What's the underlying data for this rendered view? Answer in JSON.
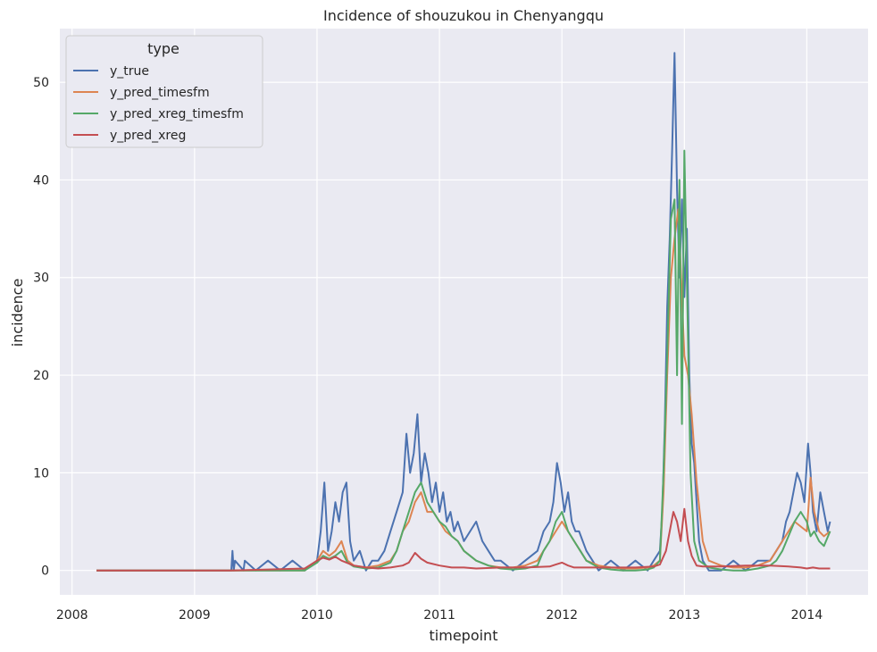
{
  "chart_data": {
    "type": "line",
    "title": "Incidence of shouzukou in Chenyangqu",
    "xlabel": "timepoint",
    "ylabel": "incidence",
    "x_ticks": [
      "2008",
      "2009",
      "2010",
      "2011",
      "2012",
      "2013",
      "2014"
    ],
    "y_ticks": [
      0,
      10,
      20,
      30,
      40,
      50
    ],
    "xlim": [
      2007.9,
      2014.5
    ],
    "ylim": [
      -2.5,
      55.5
    ],
    "grid": true,
    "background_color": "#eaeaf2",
    "legend": {
      "title": "type",
      "placement": "top-left",
      "entries": [
        "y_true",
        "y_pred_timesfm",
        "y_pred_xreg_timesfm",
        "y_pred_xreg"
      ]
    },
    "series": [
      {
        "name": "y_true",
        "color": "#4c72b0",
        "x": [
          2008.2,
          2009.3,
          2009.31,
          2009.32,
          2009.33,
          2009.4,
          2009.41,
          2009.5,
          2009.6,
          2009.7,
          2009.8,
          2009.9,
          2010.0,
          2010.03,
          2010.06,
          2010.09,
          2010.12,
          2010.15,
          2010.18,
          2010.21,
          2010.24,
          2010.27,
          2010.3,
          2010.35,
          2010.4,
          2010.45,
          2010.5,
          2010.55,
          2010.6,
          2010.65,
          2010.7,
          2010.73,
          2010.76,
          2010.79,
          2010.82,
          2010.85,
          2010.88,
          2010.91,
          2010.94,
          2010.97,
          2011.0,
          2011.03,
          2011.06,
          2011.09,
          2011.12,
          2011.15,
          2011.2,
          2011.25,
          2011.3,
          2011.35,
          2011.4,
          2011.45,
          2011.5,
          2011.6,
          2011.7,
          2011.8,
          2011.85,
          2011.9,
          2011.93,
          2011.96,
          2011.99,
          2012.02,
          2012.05,
          2012.08,
          2012.11,
          2012.14,
          2012.17,
          2012.2,
          2012.25,
          2012.3,
          2012.4,
          2012.5,
          2012.6,
          2012.7,
          2012.75,
          2012.8,
          2012.82,
          2012.84,
          2012.86,
          2012.88,
          2012.9,
          2012.92,
          2012.94,
          2012.96,
          2012.98,
          2013.0,
          2013.02,
          2013.04,
          2013.06,
          2013.08,
          2013.1,
          2013.12,
          2013.15,
          2013.2,
          2013.3,
          2013.4,
          2013.5,
          2013.6,
          2013.7,
          2013.75,
          2013.8,
          2013.83,
          2013.86,
          2013.89,
          2013.92,
          2013.95,
          2013.98,
          2014.01,
          2014.03,
          2014.05,
          2014.08,
          2014.11,
          2014.14,
          2014.17,
          2014.19
        ],
        "values": [
          0,
          0,
          2,
          0,
          1,
          0,
          1,
          0,
          1,
          0,
          1,
          0,
          1,
          4,
          9,
          2,
          4,
          7,
          5,
          8,
          9,
          3,
          1,
          2,
          0,
          1,
          1,
          2,
          4,
          6,
          8,
          14,
          10,
          12,
          16,
          9,
          12,
          10,
          7,
          9,
          6,
          8,
          5,
          6,
          4,
          5,
          3,
          4,
          5,
          3,
          2,
          1,
          1,
          0,
          1,
          2,
          4,
          5,
          7,
          11,
          9,
          6,
          8,
          5,
          4,
          4,
          3,
          2,
          1,
          0,
          1,
          0,
          1,
          0,
          1,
          2,
          6,
          15,
          27,
          34,
          43,
          53,
          39,
          30,
          38,
          28,
          35,
          20,
          13,
          11,
          7,
          3,
          1,
          0,
          0,
          1,
          0,
          1,
          1,
          2,
          3,
          5,
          6,
          8,
          10,
          9,
          7,
          13,
          10,
          6,
          4,
          8,
          6,
          4,
          5
        ]
      },
      {
        "name": "y_pred_timesfm",
        "color": "#dd8452",
        "x": [
          2008.2,
          2009.3,
          2009.9,
          2010.0,
          2010.05,
          2010.1,
          2010.15,
          2010.2,
          2010.25,
          2010.3,
          2010.4,
          2010.5,
          2010.6,
          2010.65,
          2010.7,
          2010.75,
          2010.8,
          2010.85,
          2010.9,
          2010.95,
          2011.0,
          2011.05,
          2011.1,
          2011.15,
          2011.2,
          2011.3,
          2011.4,
          2011.5,
          2011.6,
          2011.7,
          2011.8,
          2011.85,
          2011.9,
          2011.95,
          2012.0,
          2012.05,
          2012.1,
          2012.15,
          2012.2,
          2012.3,
          2012.4,
          2012.5,
          2012.6,
          2012.7,
          2012.75,
          2012.8,
          2012.83,
          2012.86,
          2012.89,
          2012.92,
          2012.95,
          2012.98,
          2013.0,
          2013.03,
          2013.06,
          2013.1,
          2013.15,
          2013.2,
          2013.3,
          2013.4,
          2013.5,
          2013.6,
          2013.7,
          2013.75,
          2013.8,
          2013.85,
          2013.9,
          2013.95,
          2014.0,
          2014.03,
          2014.06,
          2014.1,
          2014.14,
          2014.19
        ],
        "values": [
          0,
          0,
          0,
          1,
          2,
          1.5,
          2,
          3,
          1,
          0.5,
          0.3,
          0.5,
          1,
          2,
          4,
          5,
          7,
          8,
          6,
          6,
          5,
          4,
          3.5,
          3,
          2,
          1,
          0.5,
          0.3,
          0.3,
          0.5,
          1,
          2,
          3,
          4,
          5,
          4,
          3,
          2,
          1,
          0.5,
          0.3,
          0.2,
          0.2,
          0.3,
          0.5,
          1,
          8,
          20,
          30,
          34,
          37,
          28,
          22,
          20,
          16,
          9,
          3,
          1,
          0.5,
          0.3,
          0.3,
          0.5,
          1,
          2,
          3,
          4,
          5,
          4.5,
          4,
          9.5,
          6,
          4,
          3.5,
          4
        ]
      },
      {
        "name": "y_pred_xreg_timesfm",
        "color": "#55a868",
        "x": [
          2008.2,
          2009.3,
          2009.9,
          2010.0,
          2010.05,
          2010.1,
          2010.15,
          2010.2,
          2010.25,
          2010.3,
          2010.4,
          2010.5,
          2010.6,
          2010.65,
          2010.7,
          2010.75,
          2010.8,
          2010.85,
          2010.9,
          2010.95,
          2011.0,
          2011.05,
          2011.1,
          2011.15,
          2011.2,
          2011.3,
          2011.4,
          2011.5,
          2011.6,
          2011.7,
          2011.8,
          2011.85,
          2011.9,
          2011.95,
          2012.0,
          2012.05,
          2012.1,
          2012.15,
          2012.2,
          2012.3,
          2012.4,
          2012.5,
          2012.6,
          2012.7,
          2012.75,
          2012.8,
          2012.83,
          2012.86,
          2012.89,
          2012.92,
          2012.94,
          2012.96,
          2012.98,
          2013.0,
          2013.02,
          2013.05,
          2013.08,
          2013.12,
          2013.2,
          2013.3,
          2013.4,
          2013.5,
          2013.6,
          2013.7,
          2013.75,
          2013.8,
          2013.85,
          2013.9,
          2013.95,
          2014.0,
          2014.03,
          2014.06,
          2014.1,
          2014.14,
          2014.19
        ],
        "values": [
          0,
          0,
          0,
          0.8,
          1.5,
          1.2,
          1.5,
          2,
          0.8,
          0.4,
          0.2,
          0.3,
          0.8,
          2,
          4,
          6,
          8,
          9,
          7,
          6,
          5,
          4.5,
          3.5,
          3,
          2,
          1,
          0.5,
          0.2,
          0.1,
          0.2,
          0.5,
          2,
          3,
          5,
          6,
          4,
          3,
          2,
          1,
          0.3,
          0.1,
          0,
          0,
          0.1,
          0.3,
          1,
          10,
          22,
          36,
          38,
          20,
          40,
          15,
          43,
          30,
          10,
          3,
          1,
          0.3,
          0.1,
          0,
          0,
          0.2,
          0.5,
          1,
          2,
          3.5,
          5,
          6,
          5,
          3.5,
          4,
          3,
          2.5,
          4
        ]
      },
      {
        "name": "y_pred_xreg",
        "color": "#c44e52",
        "x": [
          2008.2,
          2009.3,
          2009.9,
          2010.0,
          2010.05,
          2010.1,
          2010.15,
          2010.2,
          2010.3,
          2010.4,
          2010.5,
          2010.6,
          2010.7,
          2010.75,
          2010.8,
          2010.85,
          2010.9,
          2011.0,
          2011.1,
          2011.2,
          2011.3,
          2011.5,
          2011.7,
          2011.9,
          2011.95,
          2012.0,
          2012.05,
          2012.1,
          2012.2,
          2012.4,
          2012.6,
          2012.75,
          2012.8,
          2012.85,
          2012.88,
          2012.91,
          2012.94,
          2012.97,
          2013.0,
          2013.03,
          2013.06,
          2013.1,
          2013.15,
          2013.3,
          2013.5,
          2013.7,
          2013.85,
          2013.95,
          2014.0,
          2014.05,
          2014.1,
          2014.19
        ],
        "values": [
          0,
          0,
          0.2,
          1,
          1.3,
          1.1,
          1.4,
          1,
          0.5,
          0.3,
          0.2,
          0.3,
          0.5,
          0.8,
          1.8,
          1.2,
          0.8,
          0.5,
          0.3,
          0.3,
          0.2,
          0.3,
          0.3,
          0.4,
          0.6,
          0.8,
          0.5,
          0.3,
          0.3,
          0.3,
          0.3,
          0.4,
          0.6,
          2,
          4,
          6,
          5,
          3,
          6.3,
          3,
          1.5,
          0.5,
          0.4,
          0.4,
          0.5,
          0.5,
          0.4,
          0.3,
          0.2,
          0.3,
          0.2,
          0.2
        ]
      }
    ]
  }
}
